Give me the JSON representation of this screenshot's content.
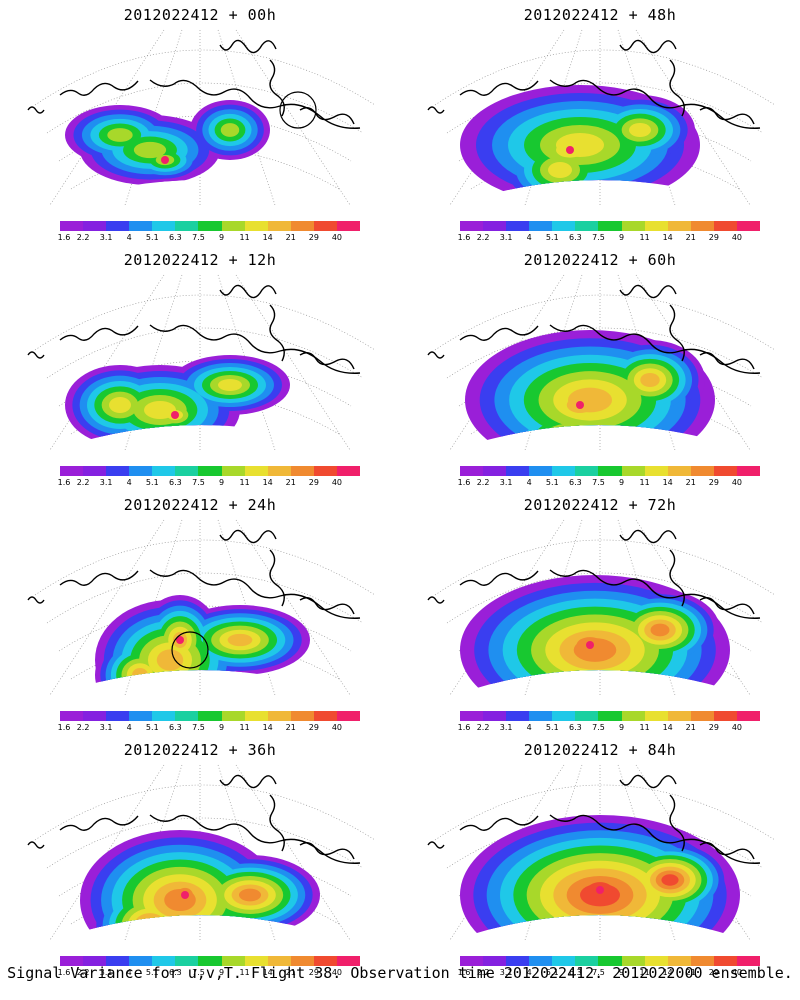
{
  "panels": [
    {
      "title": "2012022412 + 00h",
      "lead": "00h"
    },
    {
      "title": "2012022412 + 48h",
      "lead": "48h"
    },
    {
      "title": "2012022412 + 12h",
      "lead": "12h"
    },
    {
      "title": "2012022412 + 60h",
      "lead": "60h"
    },
    {
      "title": "2012022412 + 24h",
      "lead": "24h"
    },
    {
      "title": "2012022412 + 72h",
      "lead": "72h"
    },
    {
      "title": "2012022412 + 36h",
      "lead": "36h"
    },
    {
      "title": "2012022412 + 84h",
      "lead": "84h"
    }
  ],
  "colorbar": {
    "labels": [
      "1.6",
      "2.2",
      "3.1",
      "4",
      "5.1",
      "6.3",
      "7.5",
      "9",
      "11",
      "14",
      "21",
      "29",
      "40"
    ],
    "colors": [
      "#9a1fd8",
      "#8421e0",
      "#3a3ef0",
      "#1f8ff0",
      "#1fc8e8",
      "#1ad0a0",
      "#18c830",
      "#a8d82a",
      "#e8e030",
      "#f0b838",
      "#f08a30",
      "#f04a30",
      "#f0206a"
    ]
  },
  "caption": "Signal Variance for u,v,T. Flight 38. Observation time 2012022412. 2012022000 ensemble."
}
